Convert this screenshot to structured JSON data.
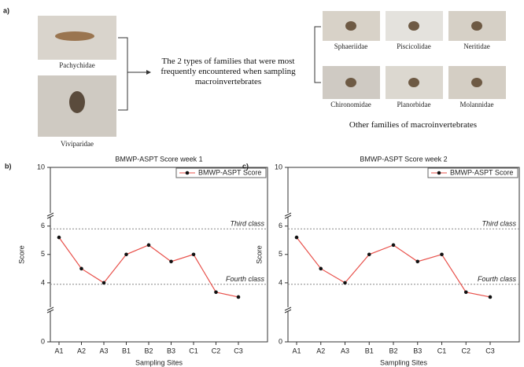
{
  "panel_a": {
    "label": "a)",
    "featured_families": [
      "Pachychidae",
      "Viviparidae"
    ],
    "caption": "The 2 types of families that were most frequently encountered when sampling macroinvertebrates",
    "other_families": [
      "Sphaeriidae",
      "Piscicolidae",
      "Neritidae",
      "Chironomidae",
      "Planorbidae",
      "Molannidae"
    ],
    "other_caption": "Other families of macroinvertebrates"
  },
  "chart_data": [
    {
      "type": "line",
      "panel_label": "b)",
      "title": "BMWP-ASPT Score week 1",
      "x_label": "Sampling Sites",
      "y_label": "Score",
      "categories": [
        "A1",
        "A2",
        "A3",
        "B1",
        "B2",
        "B3",
        "C1",
        "C2",
        "C3"
      ],
      "series": [
        {
          "name": "BMWP-ASPT Score",
          "color": "#e8504a",
          "values": [
            5.6,
            4.5,
            4.0,
            5.0,
            5.33,
            4.75,
            5.0,
            3.67,
            3.5
          ]
        }
      ],
      "ylim": [
        0,
        10
      ],
      "yticks": [
        0,
        4,
        5,
        6,
        10
      ],
      "reference_lines": [
        {
          "value": 5.9,
          "label": "Third class"
        },
        {
          "value": 3.95,
          "label": "Fourth class"
        }
      ],
      "legend": "top-right"
    },
    {
      "type": "line",
      "panel_label": "c)",
      "title": "BMWP-ASPT Score week 2",
      "x_label": "Sampling Sites",
      "y_label": "Score",
      "categories": [
        "A1",
        "A2",
        "A3",
        "B1",
        "B2",
        "B3",
        "C1",
        "C2",
        "C3"
      ],
      "series": [
        {
          "name": "BMWP-ASPT Score",
          "color": "#e8504a",
          "values": [
            5.6,
            4.5,
            4.0,
            5.0,
            5.33,
            4.75,
            5.0,
            3.67,
            3.5
          ]
        }
      ],
      "ylim": [
        0,
        10
      ],
      "yticks": [
        0,
        4,
        5,
        6,
        10
      ],
      "reference_lines": [
        {
          "value": 5.9,
          "label": "Third class"
        },
        {
          "value": 3.95,
          "label": "Fourth class"
        }
      ],
      "legend": "top-right"
    }
  ]
}
